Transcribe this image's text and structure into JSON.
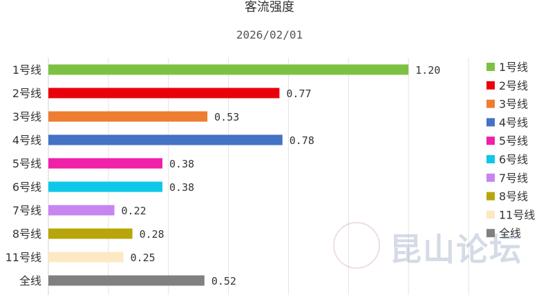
{
  "chart_data": {
    "type": "bar",
    "orientation": "horizontal",
    "title": "客流强度",
    "subtitle": "2026/02/01",
    "categories": [
      "1号线",
      "2号线",
      "3号线",
      "4号线",
      "5号线",
      "6号线",
      "7号线",
      "8号线",
      "11号线",
      "全线"
    ],
    "values": [
      1.2,
      0.77,
      0.53,
      0.78,
      0.38,
      0.38,
      0.22,
      0.28,
      0.25,
      0.52
    ],
    "value_labels": [
      "1.20",
      "0.77",
      "0.53",
      "0.78",
      "0.38",
      "0.38",
      "0.22",
      "0.28",
      "0.25",
      "0.52"
    ],
    "colors": [
      "#7dc143",
      "#e8000b",
      "#ed7d31",
      "#4472c4",
      "#f020a8",
      "#0fc8e8",
      "#c785f0",
      "#b8a50a",
      "#fce8c3",
      "#808080"
    ],
    "xlim": [
      0,
      1.4
    ],
    "grid": true,
    "legend": "right",
    "legend_entries": [
      "1号线",
      "2号线",
      "3号线",
      "4号线",
      "5号线",
      "6号线",
      "7号线",
      "8号线",
      "11号线",
      "全线"
    ]
  },
  "watermark": {
    "text": "昆山论坛",
    "seal_icon": "seal-icon"
  }
}
